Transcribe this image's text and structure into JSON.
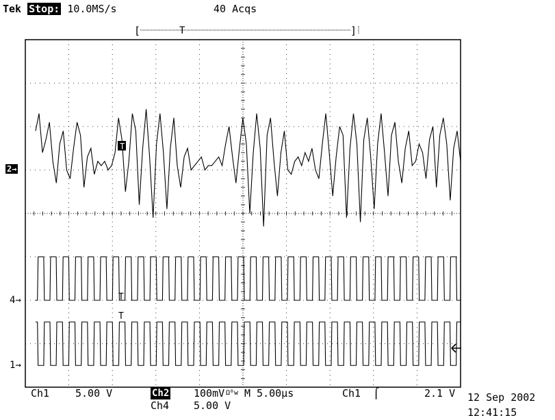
{
  "header": {
    "brand": "Tek",
    "run_state": "Stop:",
    "sample_rate": "10.0MS/s",
    "acquisitions": "40 Acqs"
  },
  "trigger_bar": {
    "left_bracket": "[",
    "trigger_marker": "T",
    "right_bracket": "]"
  },
  "channel_markers": {
    "ch2": "2",
    "ch4": "4",
    "ch1": "1",
    "trace_trigger_ch2": "T",
    "trace_trigger_ch4": "T",
    "trace_trigger_ch1": "T",
    "arrow": "→"
  },
  "footer": {
    "ch1_label": "Ch1",
    "ch1_scale": "5.00 V",
    "ch2_label": "Ch2",
    "ch2_scale": "100mV",
    "coupling_symbol": "Ωᴮw",
    "timebase": "M 5.00µs",
    "trig_source": "Ch1",
    "trig_slope": "⌠",
    "trig_level": "2.1 V",
    "ch4_label": "Ch4",
    "ch4_scale": "5.00 V",
    "date": "12 Sep 2002",
    "time": "12:41:15"
  },
  "chart_data": {
    "type": "line",
    "title": "",
    "xlabel": "",
    "ylabel": "",
    "grid": true,
    "divisions": {
      "x": 10,
      "y": 8
    },
    "x_unit": "µs",
    "x_per_div": 5.0,
    "xlim": [
      0,
      50
    ],
    "series": [
      {
        "name": "Ch2",
        "scale_per_div": "100mV",
        "ground_div": 1.0,
        "description_levels": "irregular oscillation ±1.3 div around ground",
        "y_divs": [
          0.9,
          1.3,
          0.4,
          0.7,
          1.1,
          0.2,
          -0.3,
          0.6,
          0.9,
          0.0,
          -0.2,
          0.5,
          1.1,
          0.8,
          -0.4,
          0.3,
          0.5,
          -0.1,
          0.2,
          0.1,
          0.2,
          0.0,
          0.1,
          0.4,
          1.2,
          0.7,
          -0.5,
          0.2,
          1.3,
          0.9,
          -0.8,
          0.5,
          1.4,
          0.3,
          -1.1,
          0.6,
          1.3,
          0.4,
          -0.9,
          0.5,
          1.2,
          0.1,
          -0.4,
          0.3,
          0.5,
          0.0,
          0.1,
          0.2,
          0.3,
          0.0,
          0.1,
          0.1,
          0.2,
          0.3,
          0.1,
          0.6,
          1.0,
          0.3,
          -0.3,
          0.5,
          1.2,
          0.6,
          -1.0,
          0.4,
          1.3,
          0.5,
          -1.3,
          0.8,
          1.2,
          0.2,
          -0.6,
          0.4,
          0.9,
          0.0,
          -0.1,
          0.2,
          0.3,
          0.1,
          0.4,
          0.2,
          0.5,
          0.0,
          -0.2,
          0.6,
          1.3,
          0.4,
          -0.6,
          0.3,
          1.0,
          0.8,
          -1.1,
          0.5,
          1.3,
          0.6,
          -1.2,
          0.7,
          1.2,
          0.3,
          -0.9,
          0.6,
          1.3,
          0.4,
          -0.6,
          0.8,
          1.1,
          0.2,
          -0.3,
          0.5,
          0.9,
          0.1,
          0.2,
          0.6,
          0.4,
          -0.2,
          0.7,
          1.0,
          -0.4,
          0.8,
          1.2,
          0.6,
          -0.7,
          0.5,
          0.9,
          0.2
        ]
      },
      {
        "name": "Ch4",
        "scale_per_div": "5.00 V",
        "ground_div": -2.0,
        "type": "square",
        "cycles": 34,
        "low_div": 0.0,
        "high_div": 1.0
      },
      {
        "name": "Ch1",
        "scale_per_div": "5.00 V",
        "ground_div": -3.5,
        "type": "square_inverted",
        "cycles": 34,
        "low_div": 0.0,
        "high_div": 1.0
      }
    ]
  }
}
